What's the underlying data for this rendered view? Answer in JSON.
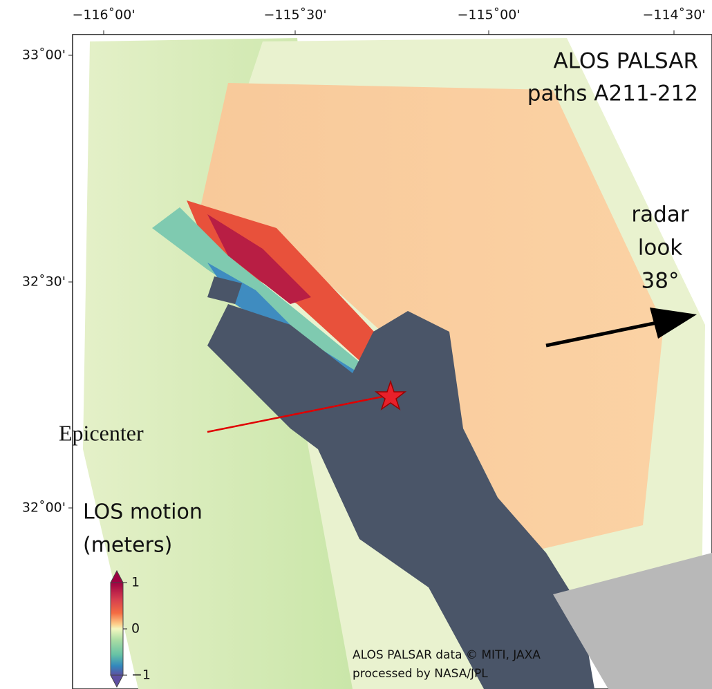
{
  "map": {
    "lon_ticks": [
      "−116˚00'",
      "−115˚30'",
      "−115˚00'",
      "−114˚30'"
    ],
    "lat_ticks": [
      "33˚00'",
      "32˚30'",
      "32˚00'"
    ],
    "title": [
      "ALOS PALSAR",
      "paths A211-212"
    ],
    "radar_look": [
      "radar",
      "look",
      "38°"
    ],
    "epicenter": "Epicenter",
    "legend_title": [
      "LOS motion",
      "(meters)"
    ],
    "colorbar": {
      "lim": [
        -1,
        1
      ],
      "ticks": [
        1,
        0,
        {
          "value": -1,
          "label": "−1"
        }
      ]
    },
    "credit": [
      "ALOS PALSAR data © MITI, JAXA",
      "processed by NASA/JPL"
    ]
  }
}
